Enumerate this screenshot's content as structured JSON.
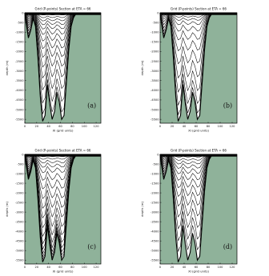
{
  "chart_data": [
    {
      "type": "line",
      "title": "Grid (P-points) Section at ETA = 66",
      "xlabel": "XI (grid units)",
      "ylabel": "depth (m)",
      "panel_label": "(a)",
      "xlim": [
        0,
        128
      ],
      "ylim": [
        -5700,
        0
      ],
      "x_ticks": [
        0,
        20,
        40,
        60,
        80,
        100,
        120
      ],
      "y_ticks": [
        0,
        -500,
        -1000,
        -1500,
        -2000,
        -2500,
        -3000,
        -3500,
        -4000,
        -4500,
        -5000,
        -5500
      ],
      "coordinate": "stretched terrain-following (s-levels), surface-refined",
      "land_color": "#8fb29a",
      "bathymetry": {
        "x": [
          0,
          2,
          6,
          10,
          14,
          18,
          22,
          26,
          30,
          34,
          38,
          42,
          46,
          50,
          54,
          58,
          62,
          66,
          70,
          74,
          78,
          82,
          86,
          90,
          100,
          110,
          128
        ],
        "depth": [
          0,
          -500,
          -1300,
          -900,
          -300,
          -700,
          -2300,
          -4300,
          -5600,
          -5300,
          -3700,
          -4700,
          -5500,
          -5100,
          -4100,
          -4600,
          -5500,
          -5300,
          -3600,
          -1900,
          -700,
          -250,
          -50,
          0,
          0,
          0,
          0
        ]
      },
      "level_fractions": [
        0,
        0.02,
        0.045,
        0.075,
        0.11,
        0.15,
        0.2,
        0.26,
        0.33,
        0.41,
        0.5,
        0.6,
        0.71,
        0.83,
        0.93,
        1
      ]
    },
    {
      "type": "line",
      "title": "Grid (P-points) Section at ETA = 66",
      "xlabel": "XI (grid units)",
      "ylabel": "depth (m)",
      "panel_label": "(b)",
      "xlim": [
        0,
        128
      ],
      "ylim": [
        -5700,
        0
      ],
      "x_ticks": [
        0,
        20,
        40,
        60,
        80,
        100,
        120
      ],
      "y_ticks": [
        0,
        -500,
        -1000,
        -1500,
        -2000,
        -2500,
        -3000,
        -3500,
        -4000,
        -4500,
        -5000,
        -5500
      ],
      "coordinate": "uniform terrain-following (sigma-levels)",
      "land_color": "#8fb29a",
      "bathymetry": {
        "x": [
          0,
          2,
          6,
          10,
          14,
          18,
          22,
          26,
          30,
          34,
          38,
          42,
          46,
          50,
          54,
          58,
          62,
          66,
          70,
          74,
          78,
          82,
          86,
          90,
          100,
          110,
          128
        ],
        "depth": [
          0,
          -500,
          -1300,
          -900,
          -300,
          -700,
          -2300,
          -4300,
          -5600,
          -5300,
          -3700,
          -4700,
          -5500,
          -5100,
          -4100,
          -4600,
          -5500,
          -5300,
          -3600,
          -1900,
          -700,
          -250,
          -50,
          0,
          0,
          0,
          0
        ]
      },
      "level_fractions": [
        0,
        0.018,
        0.04,
        0.07,
        0.11,
        0.17,
        0.25,
        0.35,
        0.47,
        0.6,
        0.73,
        0.85,
        0.94,
        1
      ]
    },
    {
      "type": "line",
      "title": "Grid (P-points) Section at ETA = 66",
      "xlabel": "XI (grid units)",
      "ylabel": "depth (m)",
      "panel_label": "(c)",
      "xlim": [
        0,
        128
      ],
      "ylim": [
        -5700,
        0
      ],
      "x_ticks": [
        0,
        20,
        40,
        60,
        80,
        100,
        120
      ],
      "y_ticks": [
        0,
        -500,
        -1000,
        -1500,
        -2000,
        -2500,
        -3000,
        -3500,
        -4000,
        -4500,
        -5000,
        -5500
      ],
      "coordinate": "stretched terrain-following, surface and bottom refined",
      "land_color": "#8fb29a",
      "bathymetry": {
        "x": [
          0,
          2,
          6,
          10,
          14,
          18,
          22,
          26,
          30,
          34,
          38,
          42,
          46,
          50,
          54,
          58,
          62,
          66,
          70,
          74,
          78,
          82,
          86,
          90,
          100,
          110,
          128
        ],
        "depth": [
          0,
          -500,
          -1300,
          -900,
          -300,
          -700,
          -2300,
          -4300,
          -5600,
          -5300,
          -3700,
          -4700,
          -5500,
          -5100,
          -4100,
          -4600,
          -5500,
          -5300,
          -3600,
          -1900,
          -700,
          -250,
          -50,
          0,
          0,
          0,
          0
        ]
      },
      "level_fractions": [
        0,
        0.02,
        0.045,
        0.08,
        0.12,
        0.17,
        0.24,
        0.32,
        0.41,
        0.5,
        0.59,
        0.68,
        0.76,
        0.83,
        0.88,
        0.92,
        0.95,
        0.975,
        1
      ]
    },
    {
      "type": "line",
      "title": "Grid (P-points) Section at ETA = 66",
      "xlabel": "XI (grid units)",
      "ylabel": "depth (m)",
      "panel_label": "(d)",
      "xlim": [
        0,
        128
      ],
      "ylim": [
        -5700,
        0
      ],
      "x_ticks": [
        0,
        20,
        40,
        60,
        80,
        100,
        120
      ],
      "y_ticks": [
        0,
        -500,
        -1000,
        -1500,
        -2000,
        -2500,
        -3000,
        -3500,
        -4000,
        -4500,
        -5000,
        -5500
      ],
      "coordinate": "terrain-following, moderate surface refinement",
      "land_color": "#8fb29a",
      "bathymetry": {
        "x": [
          0,
          2,
          6,
          10,
          14,
          18,
          22,
          26,
          30,
          34,
          38,
          42,
          46,
          50,
          54,
          58,
          62,
          66,
          70,
          74,
          78,
          82,
          86,
          90,
          100,
          110,
          128
        ],
        "depth": [
          0,
          -500,
          -1300,
          -900,
          -300,
          -700,
          -2300,
          -4300,
          -5600,
          -5300,
          -3700,
          -4700,
          -5500,
          -5100,
          -4100,
          -4600,
          -5500,
          -5300,
          -3600,
          -1900,
          -700,
          -250,
          -50,
          0,
          0,
          0,
          0
        ]
      },
      "level_fractions": [
        0,
        0.025,
        0.055,
        0.09,
        0.13,
        0.18,
        0.24,
        0.31,
        0.39,
        0.48,
        0.58,
        0.69,
        0.8,
        0.9,
        1
      ]
    }
  ]
}
